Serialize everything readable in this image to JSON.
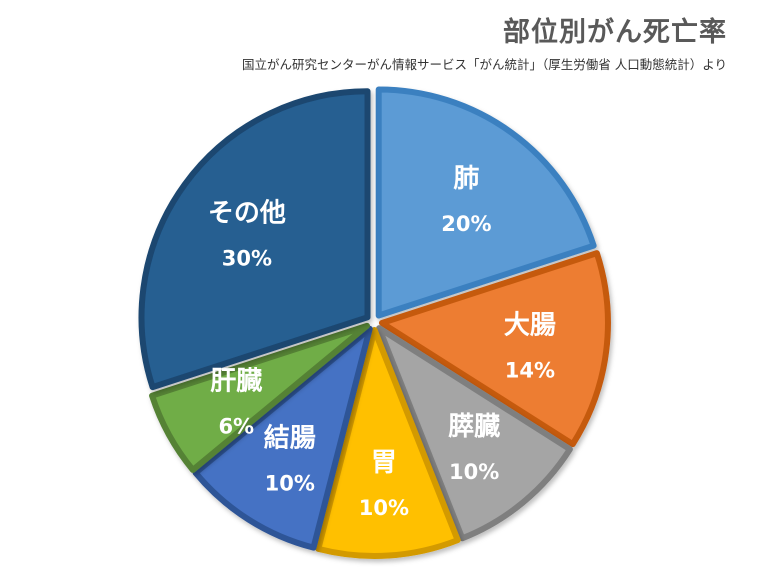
{
  "chart_data": {
    "type": "pie",
    "title": "部位別がん死亡率",
    "subtitle": "国立がん研究センターがん情報サービス「がん統計」（厚生労働省 人口動態統計）より",
    "slices": [
      {
        "label": "肺",
        "value": 20,
        "value_label": "20%",
        "color": "#5b9bd5",
        "stroke": "#3b80c0"
      },
      {
        "label": "大腸",
        "value": 14,
        "value_label": "14%",
        "color": "#ed7d31",
        "stroke": "#c55a11"
      },
      {
        "label": "膵臓",
        "value": 10,
        "value_label": "10%",
        "color": "#a5a5a5",
        "stroke": "#7f7f7f"
      },
      {
        "label": "胃",
        "value": 10,
        "value_label": "10%",
        "color": "#ffc000",
        "stroke": "#d39a00"
      },
      {
        "label": "結腸",
        "value": 10,
        "value_label": "10%",
        "color": "#4472c4",
        "stroke": "#2f5597"
      },
      {
        "label": "肝臓",
        "value": 6,
        "value_label": "6%",
        "color": "#70ad47",
        "stroke": "#548235"
      },
      {
        "label": "その他",
        "value": 30,
        "value_label": "30%",
        "color": "#255e91",
        "stroke": "#1a4670"
      }
    ]
  }
}
